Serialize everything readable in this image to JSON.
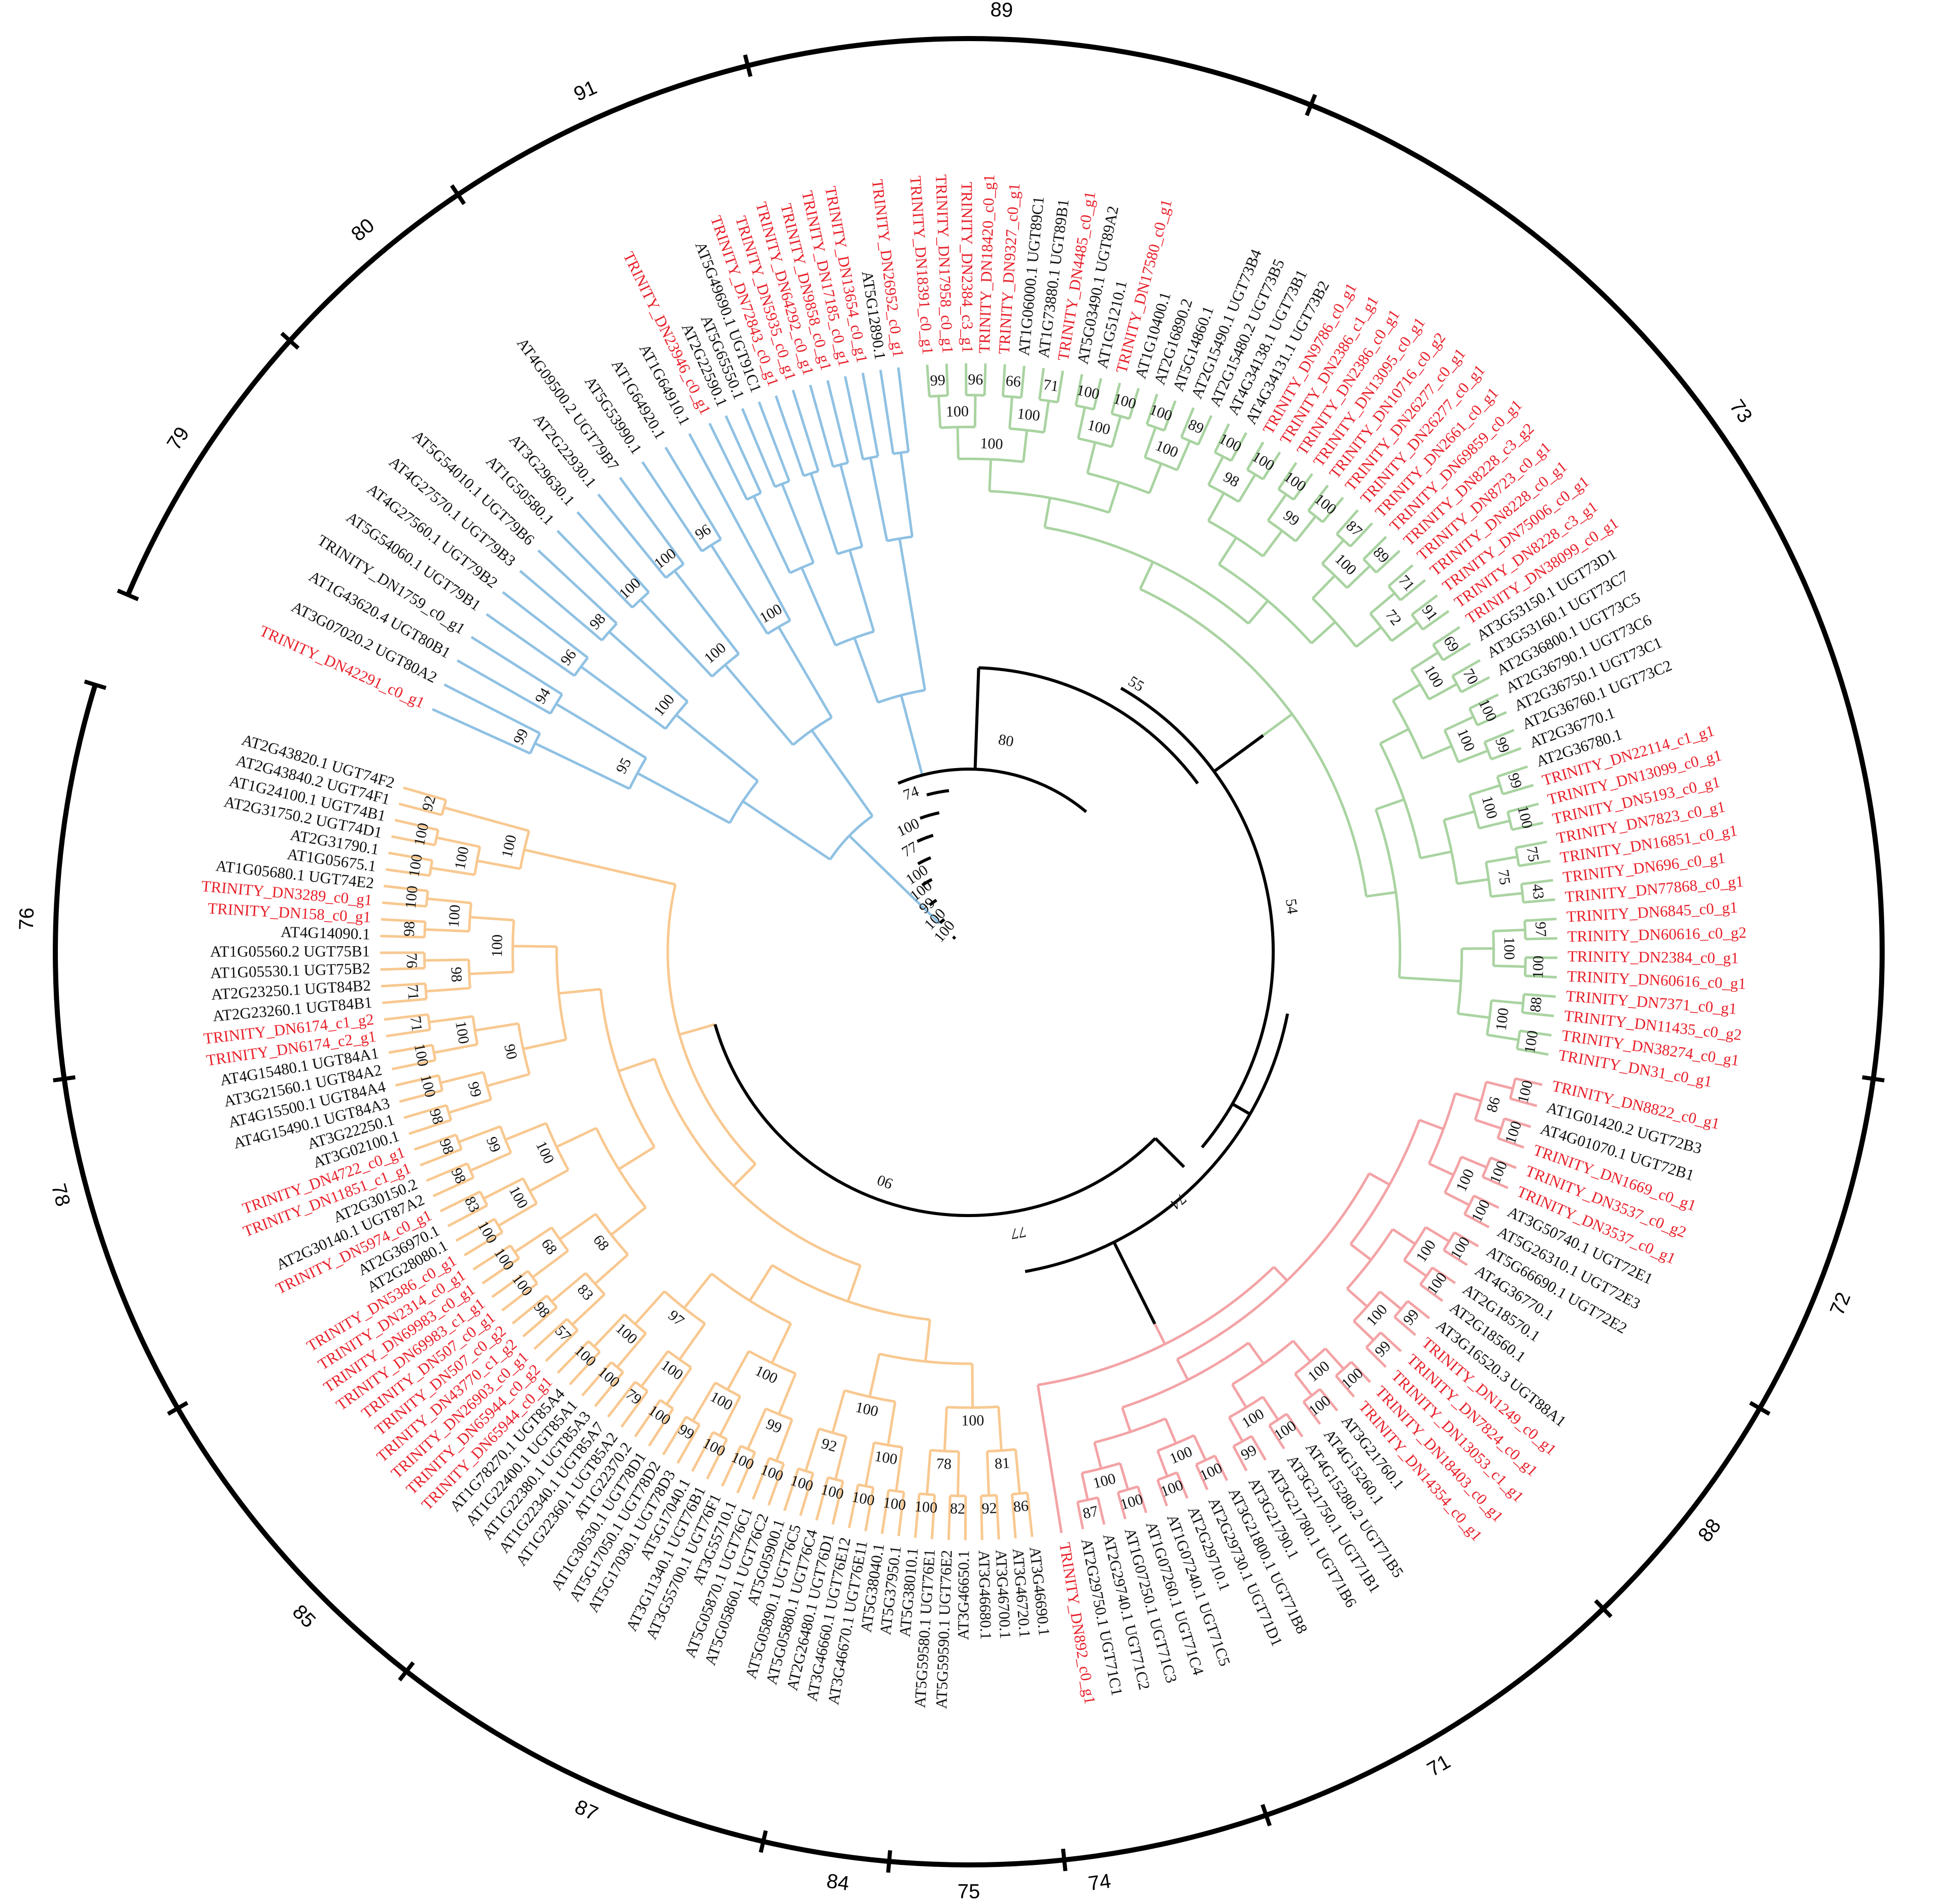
{
  "colors": {
    "blue_clade": "#8fc1e3",
    "green_clade": "#a9d3a1",
    "red_clade": "#f3a3a6",
    "orange_clade": "#f8c890",
    "backbone": "#000000",
    "highlight_text": "#e8202a",
    "normal_text": "#111111"
  },
  "clades": [
    {
      "id": "blue",
      "support": [
        "99",
        "94",
        "96",
        "98",
        "100",
        "100",
        "96",
        "95",
        "100",
        "100",
        "100"
      ],
      "leaves": [
        {
          "t": "TRINITY_DN42291_c0_g1",
          "h": true
        },
        {
          "t": "AT3G07020.2 UGT80A2",
          "h": false
        },
        {
          "t": "AT1G43620.4 UGT80B1",
          "h": false
        },
        {
          "t": "TRINITY_DN1759_c0_g1",
          "h": false
        },
        {
          "t": "AT5G54060.1 UGT79B1",
          "h": false
        },
        {
          "t": "AT4G27560.1 UGT79B2",
          "h": false
        },
        {
          "t": "AT4G27570.1 UGT79B3",
          "h": false
        },
        {
          "t": "AT5G54010.1 UGT79B6",
          "h": false
        },
        {
          "t": "AT1G50580.1",
          "h": false
        },
        {
          "t": "AT3G29630.1",
          "h": false
        },
        {
          "t": "AT2G22930.1",
          "h": false
        },
        {
          "t": "AT4G09500.2 UGT79B7",
          "h": false
        },
        {
          "t": "AT5G53990.1",
          "h": false
        },
        {
          "t": "AT1G64920.1",
          "h": false
        },
        {
          "t": "AT1G64910.1",
          "h": false
        }
      ]
    },
    {
      "id": "blue2",
      "leaves": [
        {
          "t": "TRINITY_DN23946_c0_g1",
          "h": true
        },
        {
          "t": "AT2G22590.1",
          "h": false
        },
        {
          "t": "AT5G65550.1",
          "h": false
        },
        {
          "t": "AT5G49690.1 UGT91C1",
          "h": false
        },
        {
          "t": "TRINITY_DN72843_c0_g1",
          "h": true
        },
        {
          "t": "TRINITY_DN5935_c0_g1",
          "h": true
        },
        {
          "t": "TRINITY_DN64292_c0_g1",
          "h": true
        },
        {
          "t": "TRINITY_DN9858_c0_g1",
          "h": true
        },
        {
          "t": "TRINITY_DN17185_c0_g1",
          "h": true
        },
        {
          "t": "TRINITY_DN13654_c0_g1",
          "h": true
        },
        {
          "t": "AT5G12890.1",
          "h": false
        },
        {
          "t": "TRINITY_DN26952_c0_g1",
          "h": true
        }
      ]
    },
    {
      "id": "green",
      "support": [
        "99",
        "96",
        "66",
        "71",
        "100",
        "100",
        "100",
        "89",
        "100",
        "100",
        "100",
        "100",
        "87",
        "89",
        "71",
        "91",
        "69",
        "70",
        "100",
        "99",
        "99",
        "100",
        "75",
        "43",
        "97",
        "100",
        "88",
        "100",
        "100",
        "100",
        "100",
        "100",
        "98",
        "99",
        "100",
        "72",
        "100",
        "100",
        "100",
        "75",
        "100",
        "100",
        "100"
      ],
      "leaves": [
        {
          "t": "TRINITY_DN18391_c0_g1",
          "h": true
        },
        {
          "t": "TRINITY_DN17958_c0_g1",
          "h": true
        },
        {
          "t": "TRINITY_DN2384_c3_g1",
          "h": true
        },
        {
          "t": "TRINITY_DN18420_c0_g1",
          "h": true
        },
        {
          "t": "TRINITY_DN9327_c0_g1",
          "h": true
        },
        {
          "t": "AT1G06000.1 UGT89C1",
          "h": false
        },
        {
          "t": "AT1G73880.1 UGT89B1",
          "h": false
        },
        {
          "t": "TRINITY_DN4485_c0_g1",
          "h": true
        },
        {
          "t": "AT5G03490.1 UGT89A2",
          "h": false
        },
        {
          "t": "AT1G51210.1",
          "h": false
        },
        {
          "t": "TRINITY_DN17580_c0_g1",
          "h": true
        },
        {
          "t": "AT1G10400.1",
          "h": false
        },
        {
          "t": "AT2G16890.2",
          "h": false
        },
        {
          "t": "AT5G14860.1",
          "h": false
        },
        {
          "t": "AT2G15490.1 UGT73B4",
          "h": false
        },
        {
          "t": "AT2G15480.2 UGT73B5",
          "h": false
        },
        {
          "t": "AT4G34138.1 UGT73B1",
          "h": false
        },
        {
          "t": "AT4G34131.1 UGT73B2",
          "h": false
        },
        {
          "t": "TRINITY_DN9786_c0_g1",
          "h": true
        },
        {
          "t": "TRINITY_DN2386_c1_g1",
          "h": true
        },
        {
          "t": "TRINITY_DN2386_c0_g1",
          "h": true
        },
        {
          "t": "TRINITY_DN13095_c0_g1",
          "h": true
        },
        {
          "t": "TRINITY_DN10716_c0_g2",
          "h": true
        },
        {
          "t": "TRINITY_DN26277_c0_g1",
          "h": true
        },
        {
          "t": "TRINITY_DN26277_c0_g1",
          "h": true
        },
        {
          "t": "TRINITY_DN2661_c0_g1",
          "h": true
        },
        {
          "t": "TRINITY_DN69859_c0_g1",
          "h": true
        },
        {
          "t": "TRINITY_DN8228_c3_g2",
          "h": true
        },
        {
          "t": "TRINITY_DN8723_c0_g1",
          "h": true
        },
        {
          "t": "TRINITY_DN8228_c0_g1",
          "h": true
        },
        {
          "t": "TRINITY_DN75006_c0_g1",
          "h": true
        },
        {
          "t": "TRINITY_DN8228_c3_g1",
          "h": true
        },
        {
          "t": "TRINITY_DN38099_c0_g1",
          "h": true
        },
        {
          "t": "AT3G53150.1 UGT73D1",
          "h": false
        },
        {
          "t": "AT3G53160.1 UGT73C7",
          "h": false
        },
        {
          "t": "AT2G36800.1 UGT73C5",
          "h": false
        },
        {
          "t": "AT2G36790.1 UGT73C6",
          "h": false
        },
        {
          "t": "AT2G36750.1 UGT73C1",
          "h": false
        },
        {
          "t": "AT2G36760.1 UGT73C2",
          "h": false
        },
        {
          "t": "AT2G36770.1",
          "h": false
        },
        {
          "t": "AT2G36780.1",
          "h": false
        },
        {
          "t": "TRINITY_DN22114_c1_g1",
          "h": true
        },
        {
          "t": "TRINITY_DN13099_c0_g1",
          "h": true
        },
        {
          "t": "TRINITY_DN5193_c0_g1",
          "h": true
        },
        {
          "t": "TRINITY_DN7823_c0_g1",
          "h": true
        },
        {
          "t": "TRINITY_DN16851_c0_g1",
          "h": true
        },
        {
          "t": "TRINITY_DN696_c0_g1",
          "h": true
        },
        {
          "t": "TRINITY_DN77868_c0_g1",
          "h": true
        },
        {
          "t": "TRINITY_DN6845_c0_g1",
          "h": true
        },
        {
          "t": "TRINITY_DN60616_c0_g2",
          "h": true
        },
        {
          "t": "TRINITY_DN2384_c0_g1",
          "h": true
        },
        {
          "t": "TRINITY_DN60616_c0_g1",
          "h": true
        },
        {
          "t": "TRINITY_DN7371_c0_g1",
          "h": true
        },
        {
          "t": "TRINITY_DN11435_c0_g2",
          "h": true
        },
        {
          "t": "TRINITY_DN38274_c0_g1",
          "h": true
        },
        {
          "t": "TRINITY_DN31_c0_g1",
          "h": true
        }
      ]
    },
    {
      "id": "red",
      "support": [
        "100",
        "100",
        "100",
        "100",
        "100",
        "100",
        "99",
        "99",
        "100",
        "100",
        "100",
        "99",
        "100",
        "100",
        "100",
        "87",
        "86",
        "100",
        "100",
        "100",
        "100",
        "100",
        "100",
        "100"
      ],
      "leaves": [
        {
          "t": "TRINITY_DN8822_c0_g1",
          "h": true
        },
        {
          "t": "AT1G01420.2 UGT72B3",
          "h": false
        },
        {
          "t": "AT4G01070.1 UGT72B1",
          "h": false
        },
        {
          "t": "TRINITY_DN1669_c0_g1",
          "h": true
        },
        {
          "t": "TRINITY_DN3537_c0_g2",
          "h": true
        },
        {
          "t": "TRINITY_DN3537_c0_g1",
          "h": true
        },
        {
          "t": "AT3G50740.1 UGT72E1",
          "h": false
        },
        {
          "t": "AT5G26310.1 UGT72E3",
          "h": false
        },
        {
          "t": "AT5G66690.1 UGT72E2",
          "h": false
        },
        {
          "t": "AT4G36770.1",
          "h": false
        },
        {
          "t": "AT2G18570.1",
          "h": false
        },
        {
          "t": "AT2G18560.1",
          "h": false
        },
        {
          "t": "AT3G16520.3 UGT88A1",
          "h": false
        },
        {
          "t": "TRINITY_DN1249_c0_g1",
          "h": true
        },
        {
          "t": "TRINITY_DN7824_c0_g1",
          "h": true
        },
        {
          "t": "TRINITY_DN13053_c1_g1",
          "h": true
        },
        {
          "t": "TRINITY_DN18403_c0_g1",
          "h": true
        },
        {
          "t": "TRINITY_DN14354_c0_g1",
          "h": true
        },
        {
          "t": "AT3G21760.1",
          "h": false
        },
        {
          "t": "AT4G15260.1",
          "h": false
        },
        {
          "t": "AT4G15280.2 UGT71B5",
          "h": false
        },
        {
          "t": "AT3G21750.1 UGT71B1",
          "h": false
        },
        {
          "t": "AT3G21780.1 UGT71B6",
          "h": false
        },
        {
          "t": "AT3G21790.1",
          "h": false
        },
        {
          "t": "AT3G21800.1 UGT71B8",
          "h": false
        },
        {
          "t": "AT2G29730.1 UGT71D1",
          "h": false
        },
        {
          "t": "AT2G29710.1",
          "h": false
        },
        {
          "t": "AT1G07240.1 UGT71C5",
          "h": false
        },
        {
          "t": "AT1G07260.1 UGT71C4",
          "h": false
        },
        {
          "t": "AT1G07250.1 UGT71C3",
          "h": false
        },
        {
          "t": "AT2G29740.1 UGT71C2",
          "h": false
        },
        {
          "t": "AT2G29750.1 UGT71C1",
          "h": false
        },
        {
          "t": "TRINITY_DN892_c0_g1",
          "h": true
        }
      ]
    },
    {
      "id": "orange",
      "support": [
        "86",
        "92",
        "82",
        "100",
        "100",
        "100",
        "100",
        "100",
        "100",
        "100",
        "100",
        "99",
        "100",
        "79",
        "100",
        "100",
        "57",
        "98",
        "100",
        "100",
        "100",
        "83",
        "98",
        "98",
        "98",
        "100",
        "100",
        "71",
        "71",
        "76",
        "98",
        "100",
        "100",
        "100",
        "92",
        "81",
        "78",
        "100",
        "92",
        "99",
        "100",
        "100",
        "100",
        "83",
        "68",
        "100",
        "99",
        "99",
        "100",
        "98",
        "100",
        "100",
        "100",
        "100",
        "100",
        "97",
        "68",
        "100",
        "90",
        "100",
        "100"
      ],
      "leaves": [
        {
          "t": "AT3G46690.1",
          "h": false
        },
        {
          "t": "AT3G46720.1",
          "h": false
        },
        {
          "t": "AT3G46700.1",
          "h": false
        },
        {
          "t": "AT3G46680.1",
          "h": false
        },
        {
          "t": "AT3G46650.1",
          "h": false
        },
        {
          "t": "AT5G59590.1 UGT76E2",
          "h": false
        },
        {
          "t": "AT5G59580.1 UGT76E1",
          "h": false
        },
        {
          "t": "AT5G38010.1",
          "h": false
        },
        {
          "t": "AT5G37950.1",
          "h": false
        },
        {
          "t": "AT5G38040.1",
          "h": false
        },
        {
          "t": "AT3G46670.1 UGT76E11",
          "h": false
        },
        {
          "t": "AT3G46660.1 UGT76E12",
          "h": false
        },
        {
          "t": "AT2G26480.1 UGT76D1",
          "h": false
        },
        {
          "t": "AT5G05880.1 UGT76C4",
          "h": false
        },
        {
          "t": "AT5G05890.1 UGT76C5",
          "h": false
        },
        {
          "t": "AT5G05900.1",
          "h": false
        },
        {
          "t": "AT5G05860.1 UGT76C2",
          "h": false
        },
        {
          "t": "AT5G05870.1 UGT76C1",
          "h": false
        },
        {
          "t": "AT3G55710.1",
          "h": false
        },
        {
          "t": "AT3G55700.1 UGT76F1",
          "h": false
        },
        {
          "t": "AT3G11340.1 UGT76B1",
          "h": false
        },
        {
          "t": "AT5G17040.1",
          "h": false
        },
        {
          "t": "AT5G17030.1 UGT78D3",
          "h": false
        },
        {
          "t": "AT5G17050.1 UGT78D2",
          "h": false
        },
        {
          "t": "AT1G30530.1 UGT78D1",
          "h": false
        },
        {
          "t": "AT1G22370.2",
          "h": false
        },
        {
          "t": "AT1G22360.1 UGT85A2",
          "h": false
        },
        {
          "t": "AT1G22340.1 UGT85A7",
          "h": false
        },
        {
          "t": "AT1G22380.1 UGT85A3",
          "h": false
        },
        {
          "t": "AT1G22400.1 UGT85A1",
          "h": false
        },
        {
          "t": "AT1G78270.1 UGT85A4",
          "h": false
        },
        {
          "t": "TRINITY_DN65944_c0_g1",
          "h": true
        },
        {
          "t": "TRINITY_DN65944_c0_g2",
          "h": true
        },
        {
          "t": "TRINITY_DN26903_c0_g1",
          "h": true
        },
        {
          "t": "TRINITY_DN43770_c1_g2",
          "h": true
        },
        {
          "t": "TRINITY_DN507_c0_g2",
          "h": true
        },
        {
          "t": "TRINITY_DN507_c0_g1",
          "h": true
        },
        {
          "t": "TRINITY_DN69983_c1_g1",
          "h": true
        },
        {
          "t": "TRINITY_DN69983_c0_g1",
          "h": true
        },
        {
          "t": "TRINITY_DN2314_c0_g1",
          "h": true
        },
        {
          "t": "TRINITY_DN5386_c0_g1",
          "h": true
        },
        {
          "t": "AT2G28080.1",
          "h": false
        },
        {
          "t": "AT2G36970.1",
          "h": false
        },
        {
          "t": "TRINITY_DN5974_c0_g1",
          "h": true
        },
        {
          "t": "AT2G30140.1 UGT87A2",
          "h": false
        },
        {
          "t": "AT2G30150.2",
          "h": false
        },
        {
          "t": "TRINITY_DN11851_c1_g1",
          "h": true
        },
        {
          "t": "TRINITY_DN4722_c0_g1",
          "h": true
        },
        {
          "t": "AT3G02100.1",
          "h": false
        },
        {
          "t": "AT3G22250.1",
          "h": false
        },
        {
          "t": "AT4G15490.1 UGT84A3",
          "h": false
        },
        {
          "t": "AT4G15500.1 UGT84A4",
          "h": false
        },
        {
          "t": "AT3G21560.1 UGT84A2",
          "h": false
        },
        {
          "t": "AT4G15480.1 UGT84A1",
          "h": false
        },
        {
          "t": "TRINITY_DN6174_c2_g1",
          "h": true
        },
        {
          "t": "TRINITY_DN6174_c1_g2",
          "h": true
        },
        {
          "t": "AT2G23260.1 UGT84B1",
          "h": false
        },
        {
          "t": "AT2G23250.1 UGT84B2",
          "h": false
        },
        {
          "t": "AT1G05530.1 UGT75B2",
          "h": false
        },
        {
          "t": "AT1G05560.2 UGT75B1",
          "h": false
        },
        {
          "t": "AT4G14090.1",
          "h": false
        },
        {
          "t": "TRINITY_DN158_c0_g1",
          "h": true
        },
        {
          "t": "TRINITY_DN3289_c0_g1",
          "h": true
        },
        {
          "t": "AT1G05680.1 UGT74E2",
          "h": false
        },
        {
          "t": "AT1G05675.1",
          "h": false
        },
        {
          "t": "AT2G31790.1",
          "h": false
        },
        {
          "t": "AT2G31750.2 UGT74D1",
          "h": false
        },
        {
          "t": "AT1G24100.1 UGT74B1",
          "h": false
        },
        {
          "t": "AT2G43840.2 UGT74F1",
          "h": false
        },
        {
          "t": "AT2G43820.1 UGT74F2",
          "h": false
        }
      ]
    }
  ],
  "backbone_support": [
    "100",
    "100",
    "99",
    "100",
    "100",
    "77",
    "100",
    "74",
    "80",
    "55",
    "54",
    "74",
    "77",
    "90"
  ],
  "groups": [
    {
      "label": "89",
      "angle": -88
    },
    {
      "label": "73",
      "angle": -35
    },
    {
      "label": "72",
      "angle": 22
    },
    {
      "label": "88",
      "angle": 38
    },
    {
      "label": "71",
      "angle": 60
    },
    {
      "label": "74",
      "angle": 82
    },
    {
      "label": "75",
      "angle": 90
    },
    {
      "label": "84",
      "angle": 98
    },
    {
      "label": "87",
      "angle": 114
    },
    {
      "label": "85",
      "angle": 135
    },
    {
      "label": "78",
      "angle": 165
    },
    {
      "label": "76",
      "angle": -178
    },
    {
      "label": "79",
      "angle": -147
    },
    {
      "label": "80",
      "angle": -130
    },
    {
      "label": "91",
      "angle": -114
    }
  ]
}
